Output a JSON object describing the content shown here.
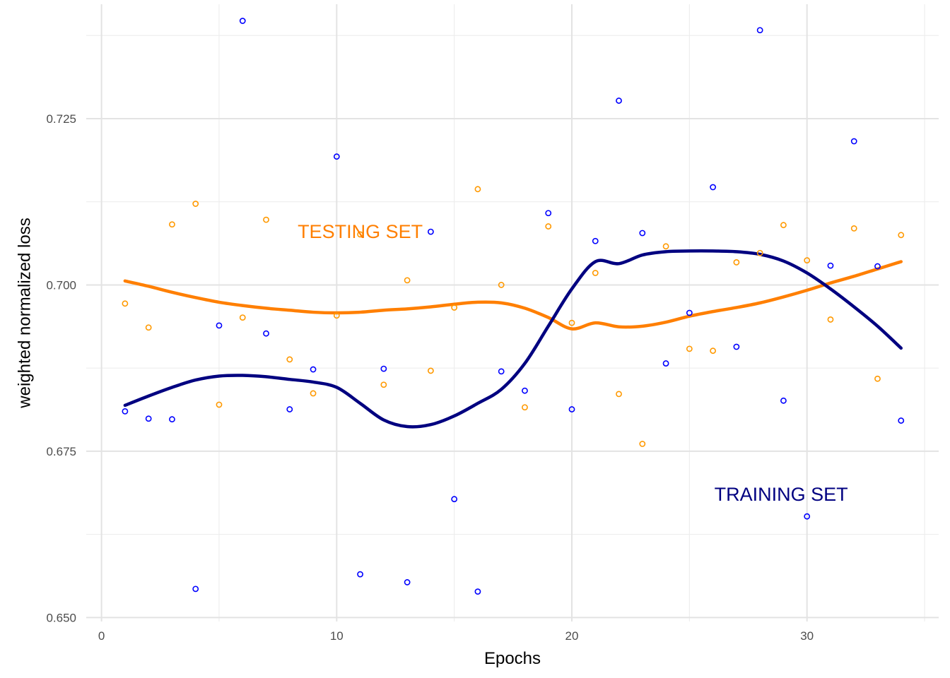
{
  "chart_data": {
    "type": "scatter",
    "xlabel": "Epochs",
    "ylabel": "weighted normalized loss",
    "xlim": [
      -0.65,
      35.6
    ],
    "ylim": [
      0.6494,
      0.7422
    ],
    "x_ticks": [
      0,
      10,
      20,
      30
    ],
    "x_tick_labels": [
      "0",
      "10",
      "20",
      "30"
    ],
    "x_minor_ticks": [
      5,
      15,
      25,
      35
    ],
    "y_ticks": [
      0.65,
      0.675,
      0.7,
      0.725
    ],
    "y_tick_labels": [
      "0.650",
      "0.675",
      "0.700",
      "0.725"
    ],
    "y_minor_ticks": [
      0.6625,
      0.6875,
      0.7125,
      0.7375
    ],
    "grid": true,
    "legend": "none",
    "annotations": [
      {
        "text": "TESTING SET",
        "x": 11.0,
        "y": 0.7078,
        "color": "#FF7F00"
      },
      {
        "text": "TRAINING SET",
        "x": 28.9,
        "y": 0.6683,
        "color": "#000080"
      }
    ],
    "series": [
      {
        "color": "#0000FF",
        "kind": "points",
        "x": [
          1,
          2,
          3,
          4,
          5,
          6,
          7,
          8,
          9,
          10,
          11,
          12,
          13,
          14,
          15,
          16,
          17,
          18,
          19,
          20,
          21,
          22,
          23,
          24,
          25,
          26,
          27,
          28,
          29,
          30,
          31,
          32,
          33,
          34
        ],
        "y": [
          0.681,
          0.6799,
          0.6798,
          0.6543,
          0.6939,
          0.7397,
          0.6927,
          0.6813,
          0.6873,
          0.7193,
          0.6565,
          0.6874,
          0.6553,
          0.708,
          0.6678,
          0.6539,
          0.687,
          0.6841,
          0.7108,
          0.6813,
          0.7066,
          0.7277,
          0.7078,
          0.6882,
          0.6958,
          0.7147,
          0.6907,
          0.7383,
          0.6826,
          0.6652,
          0.7029,
          0.7216,
          0.7028,
          0.6796
        ]
      },
      {
        "color": "#FF9900",
        "kind": "points",
        "x": [
          1,
          2,
          3,
          4,
          5,
          6,
          7,
          8,
          9,
          10,
          11,
          12,
          13,
          14,
          15,
          16,
          17,
          18,
          19,
          20,
          21,
          22,
          23,
          24,
          25,
          26,
          27,
          28,
          29,
          30,
          31,
          32,
          33,
          34
        ],
        "y": [
          0.6972,
          0.6936,
          0.7091,
          0.7122,
          0.682,
          0.6951,
          0.7098,
          0.6888,
          0.6837,
          0.6954,
          0.7076,
          0.685,
          0.7007,
          0.6871,
          0.6966,
          0.7144,
          0.7,
          0.6816,
          0.7088,
          0.6943,
          0.7018,
          0.6836,
          0.6761,
          0.7058,
          0.6904,
          0.6901,
          0.7034,
          0.7048,
          0.709,
          0.7037,
          0.6948,
          0.7085,
          0.6859,
          0.7075
        ]
      },
      {
        "color": "#FF7F00",
        "kind": "smooth",
        "x": [
          1,
          2,
          3,
          4,
          5,
          6,
          7,
          8,
          9,
          10,
          11,
          12,
          13,
          14,
          15,
          16,
          17,
          18,
          19,
          20,
          21,
          22,
          23,
          24,
          25,
          26,
          27,
          28,
          29,
          30,
          31,
          32,
          33,
          34
        ],
        "y": [
          0.7006,
          0.6998,
          0.6989,
          0.6981,
          0.6974,
          0.6969,
          0.6965,
          0.6962,
          0.6959,
          0.6958,
          0.6959,
          0.6962,
          0.6964,
          0.6967,
          0.6971,
          0.6974,
          0.6973,
          0.6965,
          0.6951,
          0.6934,
          0.6943,
          0.6937,
          0.6938,
          0.6944,
          0.6953,
          0.696,
          0.6966,
          0.6973,
          0.6982,
          0.6992,
          0.7003,
          0.7013,
          0.7024,
          0.7035
        ]
      },
      {
        "color": "#000080",
        "kind": "smooth",
        "x": [
          1,
          2,
          3,
          4,
          5,
          6,
          7,
          8,
          9,
          10,
          11,
          12,
          13,
          14,
          15,
          16,
          17,
          18,
          19,
          20,
          21,
          22,
          23,
          24,
          25,
          26,
          27,
          28,
          29,
          30,
          31,
          32,
          33,
          34
        ],
        "y": [
          0.6819,
          0.6833,
          0.6846,
          0.6857,
          0.6863,
          0.6864,
          0.6862,
          0.6858,
          0.6854,
          0.6846,
          0.6822,
          0.6797,
          0.6787,
          0.679,
          0.6803,
          0.6822,
          0.6843,
          0.6882,
          0.6938,
          0.6994,
          0.7035,
          0.7032,
          0.7045,
          0.705,
          0.7051,
          0.7051,
          0.705,
          0.7046,
          0.7036,
          0.7018,
          0.6994,
          0.6967,
          0.6938,
          0.6905
        ]
      }
    ]
  }
}
